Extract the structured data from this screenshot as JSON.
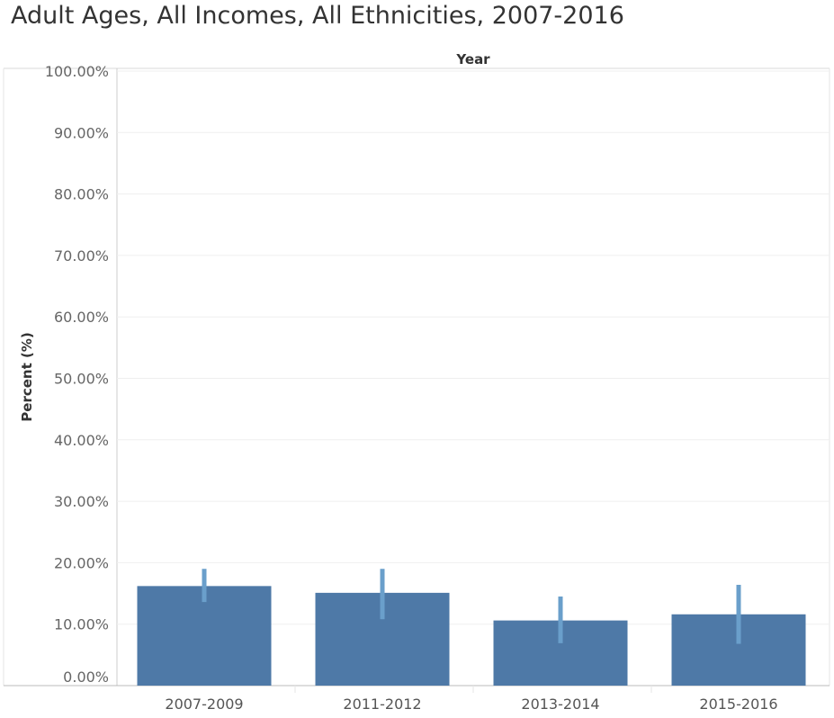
{
  "chart_data": {
    "type": "bar",
    "title": "Adult Ages, All Incomes, All Ethnicities, 2007-2016",
    "column_header": "Year",
    "ylabel": "Percent (%)",
    "xlabel": "",
    "categories": [
      "2007-2009",
      "2011-2012",
      "2013-2014",
      "2015-2016"
    ],
    "values": [
      16.2,
      15.1,
      10.6,
      11.6
    ],
    "error_low": [
      13.6,
      10.8,
      6.9,
      6.8
    ],
    "error_high": [
      19.0,
      19.0,
      14.5,
      16.4
    ],
    "ylim": [
      0,
      100
    ],
    "yticks": [
      0,
      10,
      20,
      30,
      40,
      50,
      60,
      70,
      80,
      90,
      100
    ],
    "ytick_labels": [
      "0.00%",
      "10.00%",
      "20.00%",
      "30.00%",
      "40.00%",
      "50.00%",
      "60.00%",
      "70.00%",
      "80.00%",
      "90.00%",
      "100.00%"
    ],
    "grid": true,
    "colors": {
      "bar": "#4e79a7",
      "error_bar": "#6a9fcb",
      "grid": "#efefef",
      "axis": "#cccccc"
    }
  }
}
